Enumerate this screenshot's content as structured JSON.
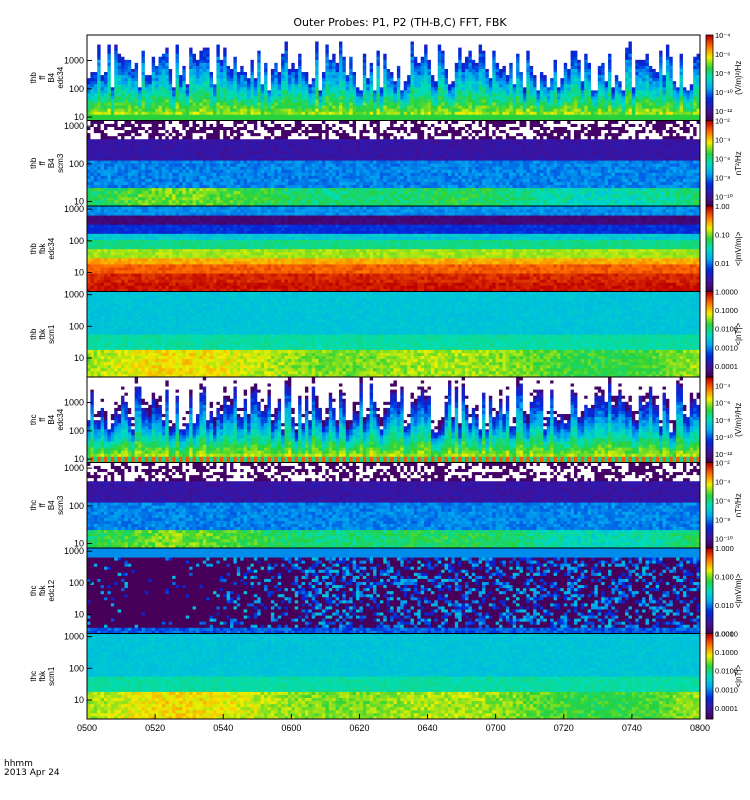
{
  "chart_data": {
    "type": "heatmap",
    "title": "Outer Probes: P1, P2 (TH-B,C) FFT, FBK",
    "time_axis": {
      "tick_labels": [
        "0500",
        "0520",
        "0540",
        "0600",
        "0620",
        "0640",
        "0700",
        "0720",
        "0740",
        "0800"
      ],
      "corner_label": "hhmm",
      "date_label": "2013 Apr 24"
    },
    "panels": [
      {
        "label_lines": [
          "thb",
          "ff",
          "B4",
          "edc34"
        ],
        "y_ticks": [
          {
            "v": 10,
            "label": "10"
          },
          {
            "v": 100,
            "label": "100"
          },
          {
            "v": 1000,
            "label": "1000"
          }
        ],
        "ylim_log": [
          0.88,
          3.9
        ],
        "colorbar": {
          "unit": "(V/m)²/Hz",
          "vmin_exp": -13,
          "vmax_exp": -4,
          "ticks": [
            {
              "e": -4,
              "label": "10⁻⁴"
            },
            {
              "e": -6,
              "label": "10⁻⁶"
            },
            {
              "e": -8,
              "label": "10⁻⁸"
            },
            {
              "e": -10,
              "label": "10⁻¹⁰"
            },
            {
              "e": -12,
              "label": "10⁻¹²"
            }
          ]
        },
        "pattern": "spiky",
        "seed": 11
      },
      {
        "label_lines": [
          "thb",
          "ff",
          "B4",
          "scm3"
        ],
        "y_ticks": [
          {
            "v": 10,
            "label": "10"
          },
          {
            "v": 100,
            "label": "100"
          },
          {
            "v": 1000,
            "label": "1000"
          }
        ],
        "ylim_log": [
          0.88,
          3.15
        ],
        "colorbar": {
          "unit": "nT²/Hz",
          "vmin_exp": -11,
          "vmax_exp": -2,
          "ticks": [
            {
              "e": -2,
              "label": "10⁻²"
            },
            {
              "e": -4,
              "label": "10⁻⁴"
            },
            {
              "e": -6,
              "label": "10⁻⁶"
            },
            {
              "e": -8,
              "label": "10⁻⁸"
            },
            {
              "e": -10,
              "label": "10⁻¹⁰"
            }
          ]
        },
        "pattern": "scm_ff",
        "seed": 23
      },
      {
        "label_lines": [
          "thb",
          "fbk",
          "edc34"
        ],
        "y_ticks": [
          {
            "v": 10,
            "label": "10"
          },
          {
            "v": 100,
            "label": "100"
          },
          {
            "v": 1000,
            "label": "1000"
          }
        ],
        "ylim_log": [
          0.4,
          3.1
        ],
        "colorbar": {
          "unit": "<|mV/m|>",
          "vmin_exp": -3,
          "vmax_exp": 0,
          "ticks": [
            {
              "e": 0,
              "label": "1.00"
            },
            {
              "e": -1,
              "label": "0.10"
            },
            {
              "e": -2,
              "label": "0.01"
            }
          ]
        },
        "pattern": "fbk_e_b",
        "seed": 37
      },
      {
        "label_lines": [
          "thb",
          "fbk",
          "scm1"
        ],
        "y_ticks": [
          {
            "v": 10,
            "label": "10"
          },
          {
            "v": 100,
            "label": "100"
          },
          {
            "v": 1000,
            "label": "1000"
          }
        ],
        "ylim_log": [
          0.4,
          3.1
        ],
        "colorbar": {
          "unit": "<|nT|>",
          "vmin_exp": -4.6,
          "vmax_exp": 0,
          "ticks": [
            {
              "e": 0,
              "label": "1.0000"
            },
            {
              "e": -1,
              "label": "0.1000"
            },
            {
              "e": -2,
              "label": "0.0100"
            },
            {
              "e": -3,
              "label": "0.0010"
            },
            {
              "e": -4,
              "label": "0.0001"
            }
          ]
        },
        "pattern": "fbk_b",
        "seed": 41
      },
      {
        "label_lines": [
          "thc",
          "ff",
          "B4",
          "edc34"
        ],
        "y_ticks": [
          {
            "v": 10,
            "label": "10"
          },
          {
            "v": 100,
            "label": "100"
          },
          {
            "v": 1000,
            "label": "1000"
          }
        ],
        "ylim_log": [
          0.88,
          3.9
        ],
        "colorbar": {
          "unit": "(V/m)²/Hz",
          "vmin_exp": -13,
          "vmax_exp": -3,
          "ticks": [
            {
              "e": -4,
              "label": "10⁻⁴"
            },
            {
              "e": -6,
              "label": "10⁻⁶"
            },
            {
              "e": -8,
              "label": "10⁻⁸"
            },
            {
              "e": -10,
              "label": "10⁻¹⁰"
            },
            {
              "e": -12,
              "label": "10⁻¹²"
            }
          ]
        },
        "pattern": "spiky_c",
        "seed": 53
      },
      {
        "label_lines": [
          "thc",
          "ff",
          "B4",
          "scm3"
        ],
        "y_ticks": [
          {
            "v": 10,
            "label": "10"
          },
          {
            "v": 100,
            "label": "100"
          },
          {
            "v": 1000,
            "label": "1000"
          }
        ],
        "ylim_log": [
          0.88,
          3.15
        ],
        "colorbar": {
          "unit": "nT²/Hz",
          "vmin_exp": -11,
          "vmax_exp": -2,
          "ticks": [
            {
              "e": -2,
              "label": "10⁻²"
            },
            {
              "e": -4,
              "label": "10⁻⁴"
            },
            {
              "e": -6,
              "label": "10⁻⁶"
            },
            {
              "e": -8,
              "label": "10⁻⁸"
            },
            {
              "e": -10,
              "label": "10⁻¹⁰"
            }
          ]
        },
        "pattern": "scm_ff",
        "seed": 67
      },
      {
        "label_lines": [
          "thc",
          "fbk",
          "edc12"
        ],
        "y_ticks": [
          {
            "v": 10,
            "label": "10"
          },
          {
            "v": 100,
            "label": "100"
          },
          {
            "v": 1000,
            "label": "1000"
          }
        ],
        "ylim_log": [
          0.4,
          3.1
        ],
        "colorbar": {
          "unit": "<|mV/m|>",
          "vmin_exp": -3,
          "vmax_exp": 0,
          "ticks": [
            {
              "e": 0,
              "label": "1.000"
            },
            {
              "e": -1,
              "label": "0.100"
            },
            {
              "e": -2,
              "label": "0.010"
            },
            {
              "e": -3,
              "label": "0.001"
            }
          ]
        },
        "pattern": "fbk_e_c",
        "seed": 79
      },
      {
        "label_lines": [
          "thc",
          "fbk",
          "scm1"
        ],
        "y_ticks": [
          {
            "v": 10,
            "label": "10"
          },
          {
            "v": 100,
            "label": "100"
          },
          {
            "v": 1000,
            "label": "1000"
          }
        ],
        "ylim_log": [
          0.4,
          3.1
        ],
        "colorbar": {
          "unit": "<|nT|>",
          "vmin_exp": -4.6,
          "vmax_exp": 0,
          "ticks": [
            {
              "e": 0,
              "label": "1.0000"
            },
            {
              "e": -1,
              "label": "0.1000"
            },
            {
              "e": -2,
              "label": "0.0100"
            },
            {
              "e": -3,
              "label": "0.0010"
            },
            {
              "e": -4,
              "label": "0.0001"
            }
          ]
        },
        "pattern": "fbk_b",
        "seed": 83
      }
    ]
  }
}
